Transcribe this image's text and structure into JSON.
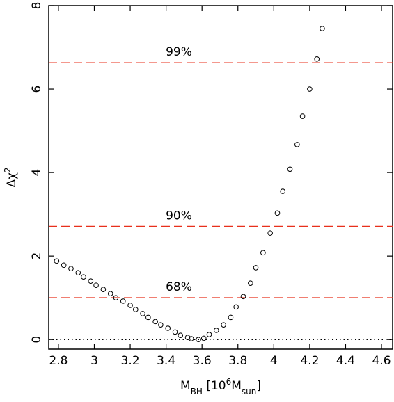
{
  "chart_data": {
    "type": "scatter",
    "x_label": [
      {
        "text": "M"
      },
      {
        "text": "BH",
        "style": "sub"
      },
      {
        "text": " [10"
      },
      {
        "text": "6",
        "style": "sup"
      },
      {
        "text": "M"
      },
      {
        "text": "sun",
        "style": "sub"
      },
      {
        "text": "]"
      }
    ],
    "y_label": [
      {
        "text": "Δχ"
      },
      {
        "text": "2",
        "style": "sup"
      }
    ],
    "xlim": [
      2.746,
      4.662
    ],
    "ylim": [
      -0.23,
      8
    ],
    "xticks": [
      2.8,
      3,
      3.2,
      3.4,
      3.6,
      3.8,
      4,
      4.2,
      4.4,
      4.6
    ],
    "yticks": [
      0,
      2,
      4,
      6,
      8
    ],
    "color": "#000000",
    "series": [
      {
        "x": [
          2.79,
          2.83,
          2.87,
          2.91,
          2.94,
          2.98,
          3.01,
          3.05,
          3.09,
          3.12,
          3.16,
          3.2,
          3.23,
          3.27,
          3.3,
          3.34,
          3.37,
          3.41,
          3.45,
          3.48,
          3.52,
          3.54,
          3.58,
          3.61,
          3.64,
          3.68,
          3.72,
          3.76,
          3.79,
          3.83,
          3.87,
          3.9,
          3.94,
          3.98,
          4.02,
          4.05,
          4.09,
          4.13,
          4.16,
          4.2,
          4.24,
          4.27
        ],
        "values": [
          1.88,
          1.78,
          1.7,
          1.6,
          1.5,
          1.4,
          1.3,
          1.2,
          1.1,
          1.0,
          0.92,
          0.82,
          0.72,
          0.62,
          0.53,
          0.43,
          0.35,
          0.27,
          0.18,
          0.1,
          0.05,
          0.02,
          0.0,
          0.03,
          0.12,
          0.22,
          0.35,
          0.53,
          0.78,
          1.03,
          1.35,
          1.72,
          2.08,
          2.55,
          3.03,
          3.55,
          4.08,
          4.67,
          5.35,
          6.0,
          6.72,
          7.45
        ]
      }
    ],
    "reference_lines": [
      {
        "value": 6.63,
        "label": "99%",
        "color": "#e8301c",
        "style": "dashed"
      },
      {
        "value": 2.71,
        "label": "90%",
        "color": "#e8301c",
        "style": "dashed"
      },
      {
        "value": 1.0,
        "label": "68%",
        "color": "#e8301c",
        "style": "dashed"
      },
      {
        "value": 0,
        "color": "#000000",
        "style": "dotted"
      }
    ]
  }
}
